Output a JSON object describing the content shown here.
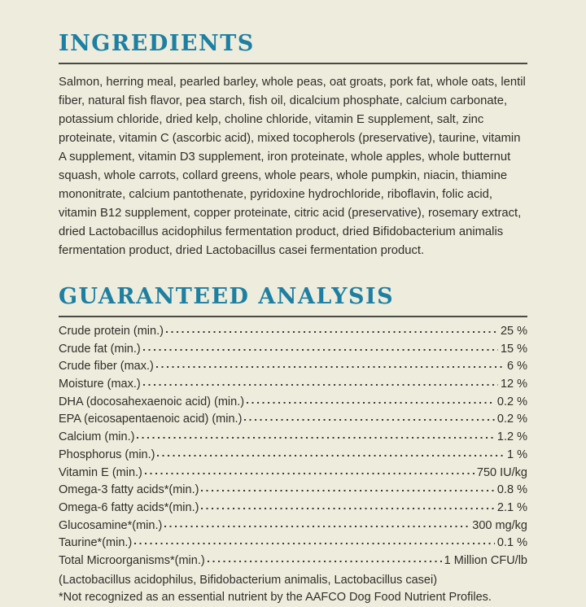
{
  "colors": {
    "background": "#eeecdc",
    "heading": "#1d7fa2",
    "rule": "#4a4944",
    "text": "#2f2e29"
  },
  "ingredients": {
    "title": "INGREDIENTS",
    "text": "Salmon, herring meal, pearled barley, whole peas, oat groats, pork fat, whole oats, lentil fiber, natural fish flavor, pea starch, fish oil, dicalcium phosphate, calcium carbonate, potassium chloride, dried kelp, choline chloride, vitamin E supplement, salt, zinc proteinate, vitamin C (ascorbic acid), mixed tocopherols (preservative), taurine, vitamin A supplement, vitamin D3 supplement, iron proteinate, whole apples, whole butternut squash, whole carrots, collard greens, whole pears, whole pumpkin, niacin, thiamine mononitrate, calcium pantothenate, pyridoxine hydrochloride, riboflavin, folic acid, vitamin B12 supplement, copper proteinate, citric acid (preservative), rosemary extract, dried Lactobacillus acidophilus fermentation product, dried Bifidobacterium animalis fermentation product, dried Lactobacillus casei fermentation product."
  },
  "analysis": {
    "title": "GUARANTEED ANALYSIS",
    "rows": [
      {
        "label": "Crude protein (min.)",
        "value": "25 %"
      },
      {
        "label": "Crude fat (min.)",
        "value": "15 %"
      },
      {
        "label": "Crude fiber (max.)",
        "value": "6 %"
      },
      {
        "label": "Moisture (max.)",
        "value": "12 %"
      },
      {
        "label": "DHA (docosahexaenoic acid) (min.)",
        "value": "0.2 %"
      },
      {
        "label": "EPA (eicosapentaenoic acid) (min.)",
        "value": "0.2 %"
      },
      {
        "label": "Calcium (min.)",
        "value": "1.2 %"
      },
      {
        "label": "Phosphorus (min.)",
        "value": "1 %"
      },
      {
        "label": "Vitamin E (min.)",
        "value": "750 IU/kg"
      },
      {
        "label": "Omega-3 fatty acids*(min.)",
        "value": "0.8 %"
      },
      {
        "label": "Omega-6 fatty acids*(min.)",
        "value": "2.1 %"
      },
      {
        "label": "Glucosamine*(min.)",
        "value": "300 mg/kg"
      },
      {
        "label": "Taurine*(min.)",
        "value": "0.1 %"
      },
      {
        "label": "Total Microorganisms*(min.)",
        "value": "1 Million CFU/lb"
      }
    ],
    "note_line": "(Lactobacillus acidophilus, Bifidobacterium animalis, Lactobacillus casei)",
    "footnote": "*Not recognized as an essential nutrient by the AAFCO Dog Food Nutrient Profiles."
  }
}
